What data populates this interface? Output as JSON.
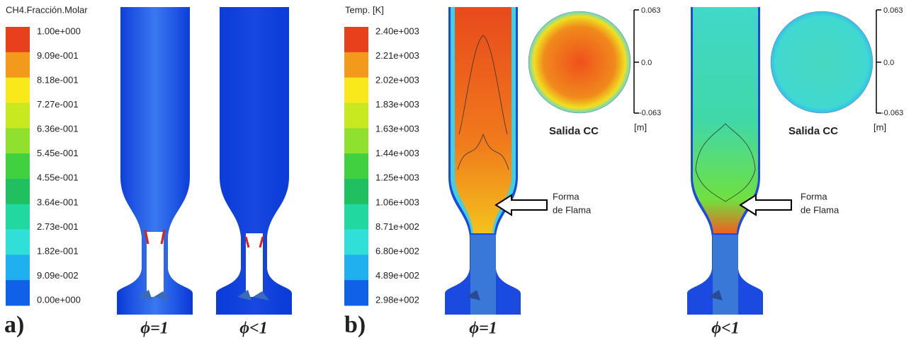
{
  "panel_a": {
    "label": "a)",
    "legend": {
      "title": "CH4.Fracción.Molar",
      "labels": [
        "1.00e+000",
        "9.09e-001",
        "8.18e-001",
        "7.27e-001",
        "6.36e-001",
        "5.45e-001",
        "4.55e-001",
        "3.64e-001",
        "2.73e-001",
        "1.82e-001",
        "9.09e-002",
        "0.00e+000"
      ],
      "colors": [
        "#e8401c",
        "#f39a1c",
        "#f8e81c",
        "#c8e820",
        "#90e030",
        "#40d040",
        "#20c060",
        "#20d8a0",
        "#30e0d8",
        "#20b0f0",
        "#1060e8"
      ]
    },
    "cases": [
      "ϕ=1",
      "ϕ<1"
    ]
  },
  "panel_b": {
    "label": "b)",
    "legend": {
      "title": "Temp. [K]",
      "labels": [
        "2.40e+003",
        "2.21e+003",
        "2.02e+003",
        "1.83e+003",
        "1.63e+003",
        "1.44e+003",
        "1.25e+003",
        "1.06e+003",
        "8.71e+002",
        "6.80e+002",
        "4.89e+002",
        "2.98e+002"
      ],
      "colors": [
        "#e8401c",
        "#f39a1c",
        "#f8e81c",
        "#c8e820",
        "#90e030",
        "#40d040",
        "#20c060",
        "#20d8a0",
        "#30e0d8",
        "#20b0f0",
        "#1060e8"
      ]
    },
    "cases": [
      "ϕ=1",
      "ϕ<1"
    ],
    "outlet": {
      "title": "Salida CC",
      "unit": "[m]",
      "ticks": [
        "0.063",
        "0.0",
        "-0.063"
      ]
    },
    "annotation": [
      "Forma",
      "de Flama"
    ]
  }
}
